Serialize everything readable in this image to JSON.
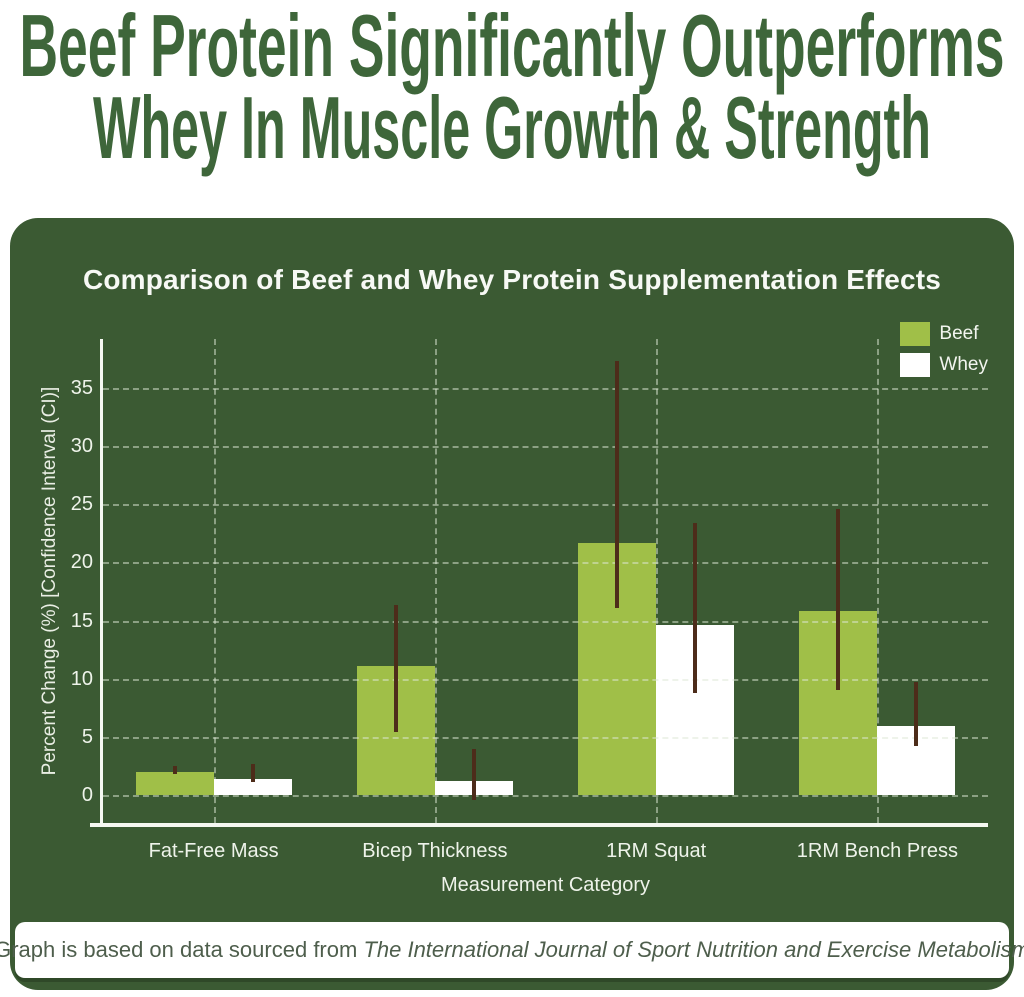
{
  "page": {
    "headline_line1": "Beef Protein Significantly Outperforms",
    "headline_line2": "Whey In Muscle Growth & Strength",
    "caption_prefix": "Graph is based on data sourced from ",
    "caption_source": "The International Journal of Sport Nutrition and Exercise Metabolism"
  },
  "colors": {
    "headline_green": "#3e663a",
    "panel_background": "#3b5a33",
    "beef_bar": "#a0bf48",
    "whey_bar": "#ffffff",
    "error_bar": "#4d2c1a",
    "axis_white": "#f5f8f2",
    "caption_text": "#4e5e4c"
  },
  "chart_data": {
    "type": "bar",
    "title": "Comparison of Beef and Whey Protein Supplementation Effects",
    "xlabel": "Measurement Category",
    "ylabel": "Percent Change (%) [Confidence Interval (CI)]",
    "categories": [
      "Fat-Free Mass",
      "Bicep Thickness",
      "1RM Squat",
      "1RM Bench Press"
    ],
    "series": [
      {
        "name": "Beef",
        "color": "#a0bf48",
        "values": [
          2.0,
          11.1,
          21.7,
          15.8
        ],
        "ci_low": [
          1.8,
          5.4,
          16.1,
          9.0
        ],
        "ci_high": [
          2.5,
          16.3,
          37.3,
          24.6
        ]
      },
      {
        "name": "Whey",
        "color": "#ffffff",
        "values": [
          1.4,
          1.2,
          14.6,
          5.9
        ],
        "ci_low": [
          1.1,
          -0.4,
          8.8,
          4.2
        ],
        "ci_high": [
          2.7,
          4.0,
          23.4,
          9.7
        ]
      }
    ],
    "yticks": [
      0,
      5,
      10,
      15,
      20,
      25,
      30,
      35
    ],
    "ylim": [
      -2.4,
      39.2
    ],
    "grid": true,
    "legend_position": "top-right",
    "error_bar_color": "#4d2c1a"
  }
}
